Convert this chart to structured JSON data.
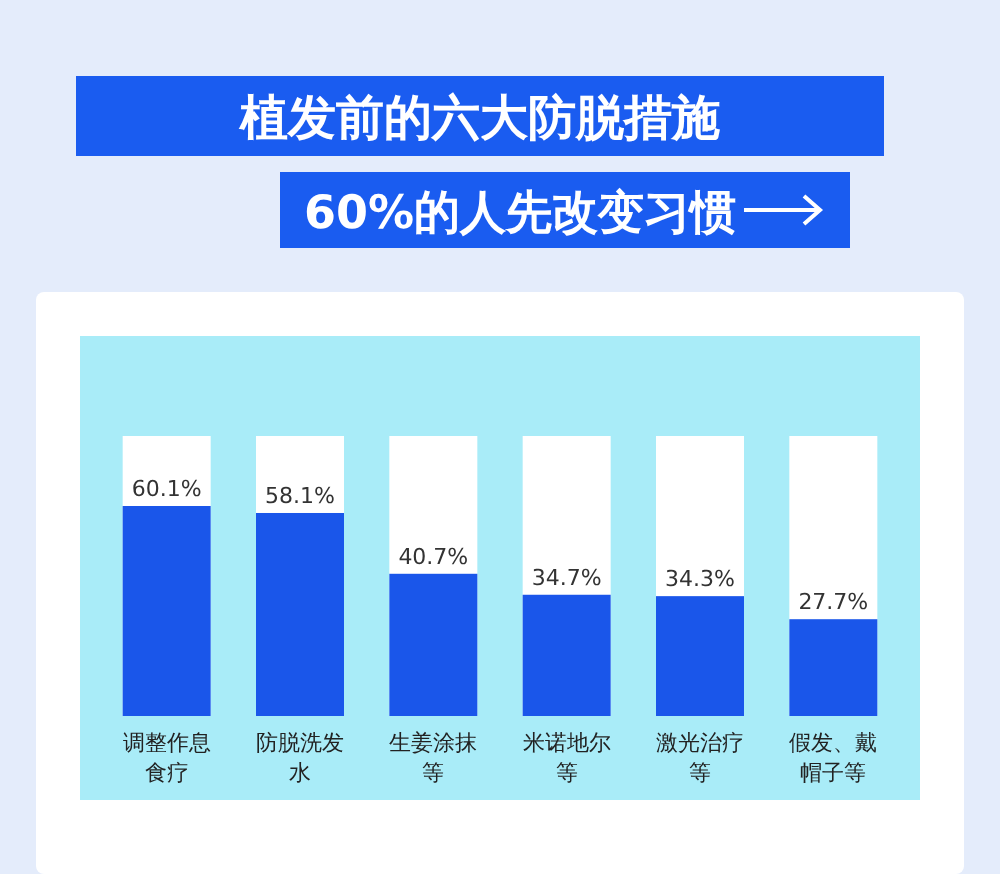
{
  "chart_data": {
    "type": "bar",
    "title": "植发前的六大防脱措施",
    "subtitle": "60%的人先改变习惯",
    "categories": [
      "调整作息食疗",
      "防脱洗发水",
      "生姜涂抹等",
      "米诺地尔等",
      "激光治疗等",
      "假发、戴帽子等"
    ],
    "values": [
      60.1,
      58.1,
      40.7,
      34.7,
      34.3,
      27.7
    ],
    "value_labels": [
      "60.1%",
      "58.1%",
      "40.7%",
      "34.7%",
      "34.3%",
      "27.7%"
    ],
    "color": "#1a56ea"
  }
}
